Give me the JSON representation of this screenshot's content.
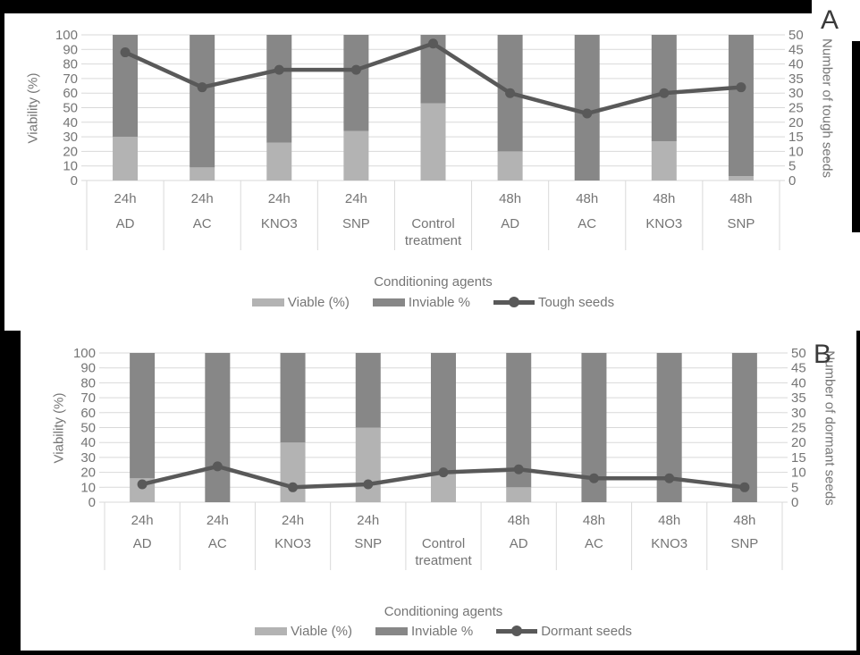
{
  "figure": {
    "background": "#000000",
    "panel_background": "#ffffff"
  },
  "colors": {
    "viable_bar": "#b3b3b3",
    "inviable_bar": "#878787",
    "line_series": "#595959",
    "gridline": "#d9d9d9",
    "axis_text": "#757575",
    "panel_letter": "#3a3a3a"
  },
  "chart_data": [
    {
      "panel_label": "A",
      "type": "combo-stacked-bar-line",
      "xlabel": "Conditioning agents",
      "categories": [
        {
          "time": "24h",
          "agent": "AD"
        },
        {
          "time": "24h",
          "agent": "AC"
        },
        {
          "time": "24h",
          "agent": "KNO3"
        },
        {
          "time": "24h",
          "agent": "SNP"
        },
        {
          "time": "",
          "agent": "Control treatment"
        },
        {
          "time": "48h",
          "agent": "AD"
        },
        {
          "time": "48h",
          "agent": "AC"
        },
        {
          "time": "48h",
          "agent": "KNO3"
        },
        {
          "time": "48h",
          "agent": "SNP"
        }
      ],
      "left_axis": {
        "label": "Viability (%)",
        "min": 0,
        "max": 100,
        "step": 10
      },
      "right_axis": {
        "label": "Number of tough seeds",
        "min": 0,
        "max": 50,
        "step": 5
      },
      "grid": true,
      "legend_position": "bottom",
      "series": [
        {
          "name": "Viable (%)",
          "type": "bar",
          "axis": "left",
          "color": "#b3b3b3",
          "values": [
            30,
            9,
            26,
            34,
            53,
            20,
            0,
            27,
            3
          ]
        },
        {
          "name": "Inviable %",
          "type": "bar",
          "axis": "left",
          "color": "#878787",
          "values": [
            70,
            91,
            74,
            66,
            47,
            80,
            100,
            73,
            97
          ]
        },
        {
          "name": "Tough seeds",
          "type": "line",
          "axis": "right",
          "color": "#595959",
          "values": [
            44,
            32,
            38,
            38,
            47,
            30,
            23,
            30,
            32
          ]
        }
      ]
    },
    {
      "panel_label": "B",
      "type": "combo-stacked-bar-line",
      "xlabel": "Conditioning agents",
      "categories": [
        {
          "time": "24h",
          "agent": "AD"
        },
        {
          "time": "24h",
          "agent": "AC"
        },
        {
          "time": "24h",
          "agent": "KNO3"
        },
        {
          "time": "24h",
          "agent": "SNP"
        },
        {
          "time": "",
          "agent": "Control treatment"
        },
        {
          "time": "48h",
          "agent": "AD"
        },
        {
          "time": "48h",
          "agent": "AC"
        },
        {
          "time": "48h",
          "agent": "KNO3"
        },
        {
          "time": "48h",
          "agent": "SNP"
        }
      ],
      "left_axis": {
        "label": "Viability (%)",
        "min": 0,
        "max": 100,
        "step": 10
      },
      "right_axis": {
        "label": "Number of dormant seeds",
        "min": 0,
        "max": 50,
        "step": 5
      },
      "grid": true,
      "legend_position": "bottom",
      "series": [
        {
          "name": "Viable (%)",
          "type": "bar",
          "axis": "left",
          "color": "#b3b3b3",
          "values": [
            16,
            0,
            40,
            50,
            20,
            10,
            0,
            0,
            0
          ]
        },
        {
          "name": "Inviable %",
          "type": "bar",
          "axis": "left",
          "color": "#878787",
          "values": [
            84,
            100,
            60,
            50,
            80,
            90,
            100,
            100,
            100
          ]
        },
        {
          "name": "Dormant seeds",
          "type": "line",
          "axis": "right",
          "color": "#595959",
          "values": [
            6,
            12,
            5,
            6,
            10,
            11,
            8,
            8,
            5
          ]
        }
      ]
    }
  ]
}
